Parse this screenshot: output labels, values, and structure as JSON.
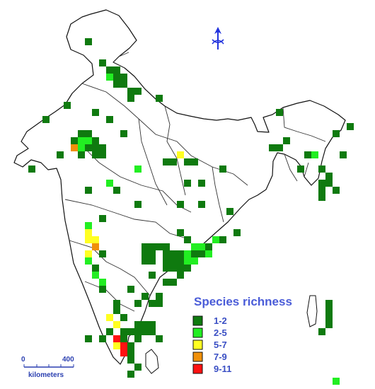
{
  "legend": {
    "title": "Species richness",
    "title_color": "#4a5cd8",
    "label_color": "#3a4fc4",
    "items": [
      {
        "label": "1-2",
        "color": "#0f7a0f"
      },
      {
        "label": "2-5",
        "color": "#22ee22"
      },
      {
        "label": "5-7",
        "color": "#ffff22"
      },
      {
        "label": "7-9",
        "color": "#f0900a"
      },
      {
        "label": "9-11",
        "color": "#ff1111"
      }
    ]
  },
  "scale_bar": {
    "start_label": "0",
    "end_label": "400",
    "unit_label": "kilometers",
    "color": "#2a3fb0"
  },
  "north_arrow": {
    "icon": "north-arrow-icon",
    "color": "#2233dd"
  },
  "richness_cells": [
    {
      "col": 10,
      "row": 4,
      "class": 0
    },
    {
      "col": 12,
      "row": 7,
      "class": 0
    },
    {
      "col": 13,
      "row": 8,
      "class": 0
    },
    {
      "col": 14,
      "row": 8,
      "class": 0
    },
    {
      "col": 13,
      "row": 9,
      "class": 1
    },
    {
      "col": 14,
      "row": 9,
      "class": 0
    },
    {
      "col": 15,
      "row": 9,
      "class": 0
    },
    {
      "col": 14,
      "row": 10,
      "class": 0
    },
    {
      "col": 15,
      "row": 10,
      "class": 0
    },
    {
      "col": 16,
      "row": 11,
      "class": 0
    },
    {
      "col": 17,
      "row": 11,
      "class": 0
    },
    {
      "col": 16,
      "row": 12,
      "class": 0
    },
    {
      "col": 20,
      "row": 12,
      "class": 0
    },
    {
      "col": 7,
      "row": 13,
      "class": 0
    },
    {
      "col": 11,
      "row": 14,
      "class": 0
    },
    {
      "col": 4,
      "row": 15,
      "class": 0
    },
    {
      "col": 13,
      "row": 15,
      "class": 0
    },
    {
      "col": 37,
      "row": 14,
      "class": 0
    },
    {
      "col": 9,
      "row": 17,
      "class": 0
    },
    {
      "col": 10,
      "row": 17,
      "class": 0
    },
    {
      "col": 8,
      "row": 18,
      "class": 0
    },
    {
      "col": 9,
      "row": 18,
      "class": 1
    },
    {
      "col": 10,
      "row": 18,
      "class": 1
    },
    {
      "col": 11,
      "row": 18,
      "class": 0
    },
    {
      "col": 8,
      "row": 19,
      "class": 3
    },
    {
      "col": 9,
      "row": 19,
      "class": 1
    },
    {
      "col": 10,
      "row": 19,
      "class": 0
    },
    {
      "col": 11,
      "row": 19,
      "class": 0
    },
    {
      "col": 12,
      "row": 19,
      "class": 0
    },
    {
      "col": 9,
      "row": 20,
      "class": 0
    },
    {
      "col": 11,
      "row": 20,
      "class": 0
    },
    {
      "col": 12,
      "row": 20,
      "class": 0
    },
    {
      "col": 15,
      "row": 17,
      "class": 0
    },
    {
      "col": 6,
      "row": 20,
      "class": 0
    },
    {
      "col": 2,
      "row": 22,
      "class": 0
    },
    {
      "col": 21,
      "row": 21,
      "class": 0
    },
    {
      "col": 22,
      "row": 21,
      "class": 0
    },
    {
      "col": 23,
      "row": 20,
      "class": 2
    },
    {
      "col": 24,
      "row": 21,
      "class": 0
    },
    {
      "col": 25,
      "row": 21,
      "class": 0
    },
    {
      "col": 17,
      "row": 22,
      "class": 1
    },
    {
      "col": 13,
      "row": 24,
      "class": 1
    },
    {
      "col": 10,
      "row": 25,
      "class": 0
    },
    {
      "col": 14,
      "row": 25,
      "class": 0
    },
    {
      "col": 24,
      "row": 24,
      "class": 0
    },
    {
      "col": 26,
      "row": 24,
      "class": 0
    },
    {
      "col": 29,
      "row": 22,
      "class": 0
    },
    {
      "col": 17,
      "row": 27,
      "class": 0
    },
    {
      "col": 23,
      "row": 27,
      "class": 0
    },
    {
      "col": 26,
      "row": 27,
      "class": 0
    },
    {
      "col": 30,
      "row": 28,
      "class": 0
    },
    {
      "col": 12,
      "row": 29,
      "class": 0
    },
    {
      "col": 10,
      "row": 30,
      "class": 1
    },
    {
      "col": 10,
      "row": 31,
      "class": 2
    },
    {
      "col": 11,
      "row": 32,
      "class": 2
    },
    {
      "col": 10,
      "row": 32,
      "class": 2
    },
    {
      "col": 11,
      "row": 33,
      "class": 3
    },
    {
      "col": 12,
      "row": 34,
      "class": 0
    },
    {
      "col": 10,
      "row": 34,
      "class": 2
    },
    {
      "col": 10,
      "row": 35,
      "class": 1
    },
    {
      "col": 11,
      "row": 36,
      "class": 0
    },
    {
      "col": 18,
      "row": 33,
      "class": 0
    },
    {
      "col": 19,
      "row": 33,
      "class": 0
    },
    {
      "col": 20,
      "row": 33,
      "class": 0
    },
    {
      "col": 21,
      "row": 33,
      "class": 0
    },
    {
      "col": 23,
      "row": 31,
      "class": 0
    },
    {
      "col": 24,
      "row": 32,
      "class": 0
    },
    {
      "col": 25,
      "row": 33,
      "class": 1
    },
    {
      "col": 26,
      "row": 33,
      "class": 1
    },
    {
      "col": 27,
      "row": 33,
      "class": 0
    },
    {
      "col": 28,
      "row": 32,
      "class": 1
    },
    {
      "col": 29,
      "row": 32,
      "class": 0
    },
    {
      "col": 31,
      "row": 31,
      "class": 0
    },
    {
      "col": 18,
      "row": 34,
      "class": 0
    },
    {
      "col": 19,
      "row": 34,
      "class": 0
    },
    {
      "col": 21,
      "row": 34,
      "class": 0
    },
    {
      "col": 22,
      "row": 34,
      "class": 0
    },
    {
      "col": 23,
      "row": 34,
      "class": 0
    },
    {
      "col": 24,
      "row": 34,
      "class": 1
    },
    {
      "col": 25,
      "row": 34,
      "class": 0
    },
    {
      "col": 26,
      "row": 34,
      "class": 0
    },
    {
      "col": 27,
      "row": 34,
      "class": 1
    },
    {
      "col": 18,
      "row": 35,
      "class": 0
    },
    {
      "col": 19,
      "row": 35,
      "class": 0
    },
    {
      "col": 21,
      "row": 35,
      "class": 0
    },
    {
      "col": 22,
      "row": 35,
      "class": 0
    },
    {
      "col": 23,
      "row": 35,
      "class": 0
    },
    {
      "col": 24,
      "row": 35,
      "class": 1
    },
    {
      "col": 25,
      "row": 35,
      "class": 1
    },
    {
      "col": 11,
      "row": 37,
      "class": 1
    },
    {
      "col": 21,
      "row": 36,
      "class": 0
    },
    {
      "col": 22,
      "row": 36,
      "class": 0
    },
    {
      "col": 23,
      "row": 36,
      "class": 0
    },
    {
      "col": 24,
      "row": 36,
      "class": 0
    },
    {
      "col": 12,
      "row": 38,
      "class": 1
    },
    {
      "col": 12,
      "row": 39,
      "class": 0
    },
    {
      "col": 16,
      "row": 39,
      "class": 0
    },
    {
      "col": 19,
      "row": 37,
      "class": 0
    },
    {
      "col": 21,
      "row": 38,
      "class": 0
    },
    {
      "col": 22,
      "row": 38,
      "class": 0
    },
    {
      "col": 23,
      "row": 37,
      "class": 0
    },
    {
      "col": 18,
      "row": 40,
      "class": 0
    },
    {
      "col": 20,
      "row": 40,
      "class": 0
    },
    {
      "col": 17,
      "row": 41,
      "class": 0
    },
    {
      "col": 19,
      "row": 41,
      "class": 0
    },
    {
      "col": 20,
      "row": 41,
      "class": 0
    },
    {
      "col": 14,
      "row": 41,
      "class": 0
    },
    {
      "col": 14,
      "row": 42,
      "class": 0
    },
    {
      "col": 15,
      "row": 43,
      "class": 0
    },
    {
      "col": 13,
      "row": 43,
      "class": 2
    },
    {
      "col": 14,
      "row": 44,
      "class": 2
    },
    {
      "col": 13,
      "row": 45,
      "class": 0
    },
    {
      "col": 15,
      "row": 45,
      "class": 0
    },
    {
      "col": 17,
      "row": 44,
      "class": 0
    },
    {
      "col": 18,
      "row": 44,
      "class": 0
    },
    {
      "col": 19,
      "row": 44,
      "class": 0
    },
    {
      "col": 10,
      "row": 46,
      "class": 0
    },
    {
      "col": 12,
      "row": 46,
      "class": 0
    },
    {
      "col": 14,
      "row": 46,
      "class": 4
    },
    {
      "col": 15,
      "row": 46,
      "class": 0
    },
    {
      "col": 16,
      "row": 45,
      "class": 0
    },
    {
      "col": 17,
      "row": 45,
      "class": 0
    },
    {
      "col": 18,
      "row": 45,
      "class": 0
    },
    {
      "col": 19,
      "row": 45,
      "class": 0
    },
    {
      "col": 20,
      "row": 46,
      "class": 0
    },
    {
      "col": 14,
      "row": 47,
      "class": 2
    },
    {
      "col": 15,
      "row": 47,
      "class": 4
    },
    {
      "col": 16,
      "row": 47,
      "class": 0
    },
    {
      "col": 17,
      "row": 46,
      "class": 0
    },
    {
      "col": 15,
      "row": 48,
      "class": 4
    },
    {
      "col": 16,
      "row": 48,
      "class": 0
    },
    {
      "col": 16,
      "row": 49,
      "class": 0
    },
    {
      "col": 17,
      "row": 50,
      "class": 0
    },
    {
      "col": 16,
      "row": 51,
      "class": 0
    },
    {
      "col": 36,
      "row": 19,
      "class": 0
    },
    {
      "col": 37,
      "row": 19,
      "class": 0
    },
    {
      "col": 38,
      "row": 18,
      "class": 0
    },
    {
      "col": 41,
      "row": 20,
      "class": 0
    },
    {
      "col": 42,
      "row": 20,
      "class": 1
    },
    {
      "col": 46,
      "row": 20,
      "class": 0
    },
    {
      "col": 45,
      "row": 17,
      "class": 0
    },
    {
      "col": 47,
      "row": 16,
      "class": 0
    },
    {
      "col": 40,
      "row": 22,
      "class": 0
    },
    {
      "col": 43,
      "row": 22,
      "class": 0
    },
    {
      "col": 44,
      "row": 23,
      "class": 0
    },
    {
      "col": 43,
      "row": 24,
      "class": 0
    },
    {
      "col": 44,
      "row": 24,
      "class": 0
    },
    {
      "col": 43,
      "row": 25,
      "class": 0
    },
    {
      "col": 45,
      "row": 25,
      "class": 0
    },
    {
      "col": 43,
      "row": 26,
      "class": 0
    },
    {
      "col": 44,
      "row": 41,
      "class": 0
    },
    {
      "col": 44,
      "row": 42,
      "class": 0
    },
    {
      "col": 44,
      "row": 43,
      "class": 0
    },
    {
      "col": 44,
      "row": 44,
      "class": 0
    },
    {
      "col": 43,
      "row": 45,
      "class": 0
    },
    {
      "col": 45,
      "row": 52,
      "class": 1
    }
  ]
}
